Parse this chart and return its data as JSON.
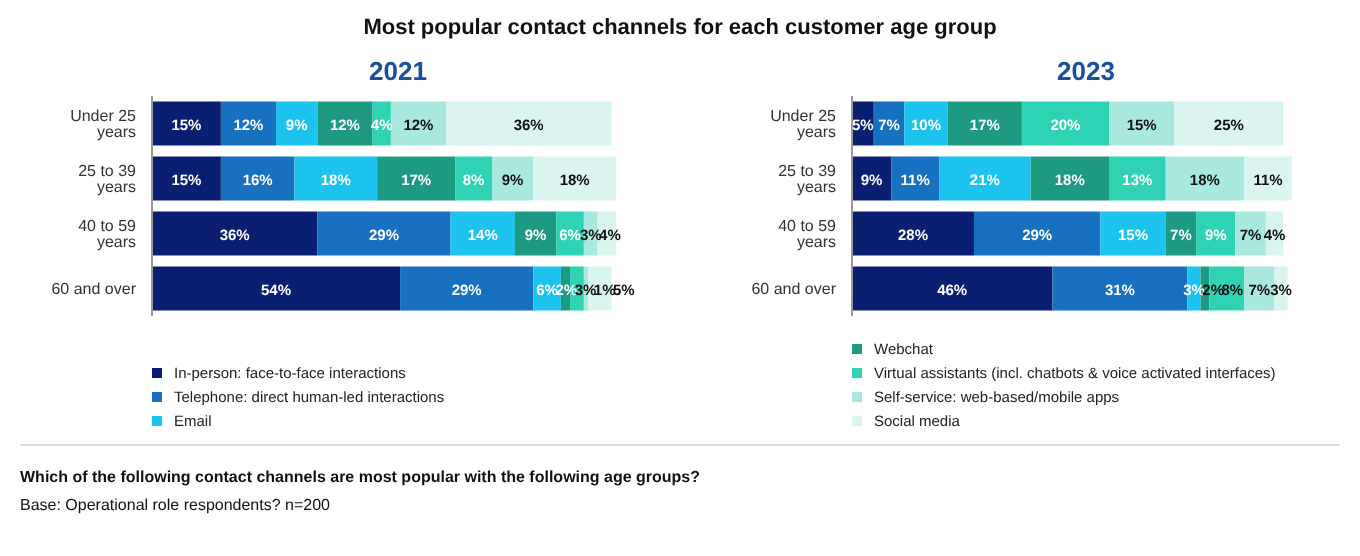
{
  "chart_data": [
    {
      "type": "bar",
      "orientation": "horizontal",
      "stacked": true,
      "title": "Most popular contact channels for each customer age group",
      "subtitle": "2021",
      "categories": [
        "Under 25 years",
        "25 to 39 years",
        "40 to 59 years",
        "60 and over"
      ],
      "legend": "bottom",
      "series": [
        {
          "name": "In-person: face-to-face interactions",
          "color": "#0b1f72",
          "values": [
            15,
            15,
            36,
            54
          ],
          "value_labels": [
            "15%",
            "15%",
            "36%",
            "54%"
          ]
        },
        {
          "name": "Telephone: direct human-led interactions",
          "color": "#1770c0",
          "values": [
            12,
            16,
            29,
            29
          ],
          "value_labels": [
            "12%",
            "16%",
            "29%",
            "29%"
          ]
        },
        {
          "name": "Email",
          "color": "#1cc3ee",
          "values": [
            9,
            18,
            14,
            6
          ],
          "value_labels": [
            "9%",
            "18%",
            "14%",
            "6%"
          ]
        },
        {
          "name": "Webchat",
          "color": "#1f9a82",
          "values": [
            12,
            17,
            9,
            2
          ],
          "value_labels": [
            "12%",
            "17%",
            "9%",
            "2%"
          ]
        },
        {
          "name": "Virtual assistants (incl. chatbots & voice activated interfaces)",
          "color": "#2fd2b2",
          "values": [
            4,
            8,
            6,
            3
          ],
          "value_labels": [
            "4%",
            "8%",
            "6%",
            "3%"
          ]
        },
        {
          "name": "Self-service: web-based/mobile apps",
          "color": "#a9e8de",
          "values": [
            12,
            9,
            3,
            1
          ],
          "value_labels": [
            "12%",
            "9%",
            "3%",
            "1%"
          ]
        },
        {
          "name": "Social media",
          "color": "#daf5ef",
          "values": [
            36,
            18,
            4,
            5
          ],
          "value_labels": [
            "36%",
            "18%",
            "4%",
            "5%"
          ]
        }
      ],
      "annotations": [
        "Which of the following contact channels are most popular with the following age groups?",
        "Base: Operational role respondents? n=200"
      ]
    },
    {
      "type": "bar",
      "orientation": "horizontal",
      "stacked": true,
      "subtitle": "2023",
      "categories": [
        "Under 25 years",
        "25 to 39 years",
        "40 to 59 years",
        "60 and over"
      ],
      "series": [
        {
          "color": "#0b1f72",
          "values": [
            5,
            9,
            28,
            46
          ],
          "value_labels": [
            "5%",
            "9%",
            "28%",
            "46%"
          ]
        },
        {
          "color": "#1770c0",
          "values": [
            7,
            11,
            29,
            31
          ],
          "value_labels": [
            "7%",
            "11%",
            "29%",
            "31%"
          ]
        },
        {
          "color": "#1cc3ee",
          "values": [
            10,
            21,
            15,
            3
          ],
          "value_labels": [
            "10%",
            "21%",
            "15%",
            "3%"
          ]
        },
        {
          "color": "#1f9a82",
          "values": [
            17,
            18,
            7,
            2
          ],
          "value_labels": [
            "17%",
            "18%",
            "7%",
            "2%"
          ]
        },
        {
          "color": "#2fd2b2",
          "values": [
            20,
            13,
            9,
            8
          ],
          "value_labels": [
            "20%",
            "13%",
            "9%",
            "8%"
          ]
        },
        {
          "color": "#a9e8de",
          "values": [
            15,
            18,
            7,
            7
          ],
          "value_labels": [
            "15%",
            "18%",
            "7%",
            "7%"
          ]
        },
        {
          "color": "#daf5ef",
          "values": [
            25,
            11,
            4,
            3
          ],
          "value_labels": [
            "25%",
            "11%",
            "4%",
            "3%"
          ]
        }
      ]
    }
  ]
}
